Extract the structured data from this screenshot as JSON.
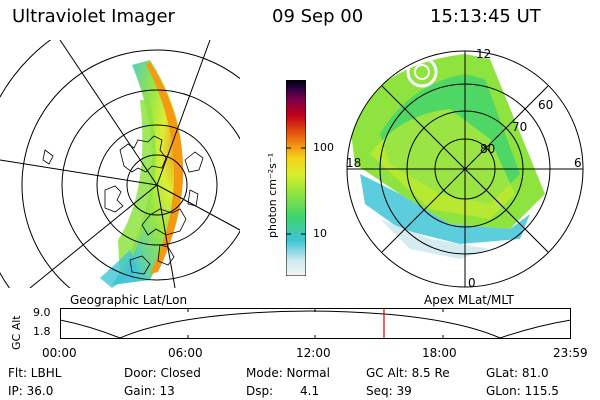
{
  "header": {
    "title": "Ultraviolet Imager",
    "date": "09 Sep 00",
    "time": "15:13:45 UT"
  },
  "colorbar": {
    "unit_label": "photon cm⁻²s⁻¹",
    "tick_100": "100",
    "tick_10": "10",
    "colors": [
      "#f4f4f4",
      "#cfe9ee",
      "#3fc4d6",
      "#3fd36f",
      "#8ee33f",
      "#d9ee2a",
      "#f5d21b",
      "#f39a12",
      "#e04a12",
      "#c0001a",
      "#7a004a",
      "#2a0040",
      "#000000"
    ]
  },
  "left_map": {
    "caption": "Geographic Lat/Lon"
  },
  "right_map": {
    "caption": "Apex MLat/MLT",
    "ring_labels": [
      "60",
      "70",
      "80"
    ],
    "mlt_labels": {
      "top": "12",
      "left": "18",
      "right": "6",
      "bottom": "0"
    }
  },
  "altitude_plot": {
    "ylabel": "GC Alt",
    "y_max": "9.0",
    "y_min": "1.8",
    "x_ticks": [
      "00:00",
      "06:00",
      "12:00",
      "18:00",
      "23:59"
    ],
    "marker_time": "15:13:45",
    "marker_color": "#e00000"
  },
  "status": {
    "filter": "Flt: LBHL",
    "door": "Door: Closed",
    "mode": "Mode: Normal",
    "gc_alt": "GC Alt: 8.5 Re",
    "glat": "GLat: 81.0",
    "ip": "IP: 36.0",
    "gain": "Gain: 13",
    "dsp_label": "Dsp:",
    "dsp_value": "4.1",
    "seq": "Seq: 39",
    "glon": "GLon: 115.5"
  }
}
